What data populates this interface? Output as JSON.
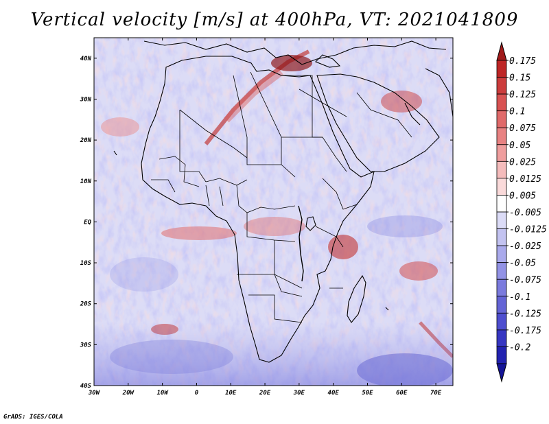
{
  "title": "Vertical velocity [m/s] at 400hPa, VT: 2021041809",
  "footer": "GrADS: IGES/COLA",
  "map": {
    "lon_range": [
      -30,
      75
    ],
    "lat_range": [
      -40,
      45
    ],
    "lon_ticks": [
      {
        "value": -30,
        "label": "30W"
      },
      {
        "value": -20,
        "label": "20W"
      },
      {
        "value": -10,
        "label": "10W"
      },
      {
        "value": 0,
        "label": "0"
      },
      {
        "value": 10,
        "label": "10E"
      },
      {
        "value": 20,
        "label": "20E"
      },
      {
        "value": 30,
        "label": "30E"
      },
      {
        "value": 40,
        "label": "40E"
      },
      {
        "value": 50,
        "label": "50E"
      },
      {
        "value": 60,
        "label": "60E"
      },
      {
        "value": 70,
        "label": "70E"
      }
    ],
    "lat_ticks": [
      {
        "value": 40,
        "label": "40N"
      },
      {
        "value": 30,
        "label": "30N"
      },
      {
        "value": 20,
        "label": "20N"
      },
      {
        "value": 10,
        "label": "10N"
      },
      {
        "value": 0,
        "label": "EQ"
      },
      {
        "value": -10,
        "label": "10S"
      },
      {
        "value": -20,
        "label": "20S"
      },
      {
        "value": -30,
        "label": "30S"
      },
      {
        "value": -40,
        "label": "40S"
      }
    ],
    "field": "vertical velocity",
    "units": "m/s",
    "level": "400hPa",
    "valid_time": "2021041809",
    "coastlines": true,
    "country_borders": true
  },
  "colorbar": {
    "orientation": "vertical",
    "placement": "right",
    "labels": [
      "0.175",
      "0.15",
      "0.125",
      "0.1",
      "0.075",
      "0.05",
      "0.025",
      "0.0125",
      "0.005",
      "-0.005",
      "-0.0125",
      "-0.025",
      "-0.05",
      "-0.075",
      "-0.1",
      "-0.125",
      "-0.175",
      "-0.2"
    ],
    "colors": [
      "#a01a1a",
      "#be2626",
      "#cc3c3c",
      "#d85252",
      "#e06a6a",
      "#e88282",
      "#ef9e9e",
      "#f5bcbc",
      "#fadada",
      "#ffffff",
      "#dcdcf7",
      "#c3c3f1",
      "#aaaaec",
      "#9393e6",
      "#7b7bde",
      "#6464d6",
      "#4e4ecf",
      "#3636c2",
      "#2222b0",
      "#141496"
    ]
  }
}
